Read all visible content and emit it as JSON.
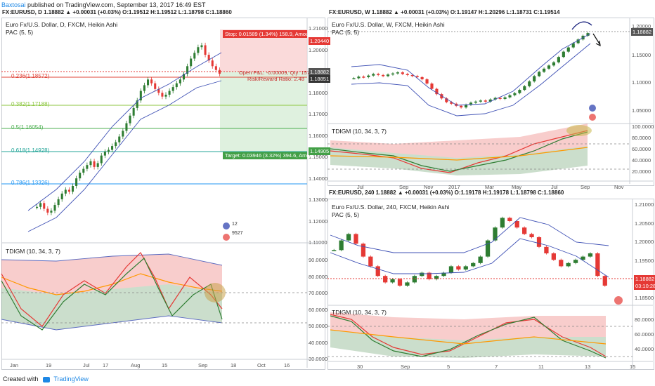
{
  "header": {
    "publisher": "Baxtosai",
    "published_text": "published on TradingView.com, September 13, 2017 16:49 EST"
  },
  "footer": {
    "created_with": "Created with",
    "brand": "TradingView"
  },
  "panels": {
    "daily": {
      "info": "FX:EURUSD, D 1.18882 ▲ +0.00031 (+0.03%) O:1.19512 H:1.19512 L:1.18798 C:1.18860",
      "title": "Euro Fx/U.S. Dollar, D, FXCM, Heikin Ashi",
      "pac": "PAC (5, 5)",
      "indicator": "TDIGM (10, 34, 3, 7)",
      "fib_levels": [
        {
          "label": "0.236(1.18572)",
          "price": 1.18572,
          "color": "#e0453a"
        },
        {
          "label": "0.382(1.17188)",
          "price": 1.17188,
          "color": "#8cc63f"
        },
        {
          "label": "0.5(1.16054)",
          "price": 1.16054,
          "color": "#4caf50"
        },
        {
          "label": "0.618(1.14928)",
          "price": 1.14928,
          "color": "#26a69a"
        },
        {
          "label": "0.786(1.13326)",
          "price": 1.13326,
          "color": "#2196f3"
        }
      ],
      "position": {
        "stop": "Stop: 0.01589 (1.34%) 158.9, Amou",
        "open": "Open P&L: -0.00009, Qty: 1573",
        "rr": "Risk/Reward Ratio: 2.48",
        "target": "Target: 0.03946 (3.32%) 394.6, Amoun"
      },
      "price_axis": [
        "1.21000",
        "1.20000",
        "1.19000",
        "1.18000",
        "1.17000",
        "1.16000",
        "1.15000",
        "1.14000",
        "1.13000",
        "1.12000",
        "1.11000"
      ],
      "price_badges": [
        {
          "text": "1.20440",
          "color": "#e53935"
        },
        {
          "text": "1.18882",
          "color": "#555555"
        },
        {
          "text": "1.18851",
          "color": "#333333"
        },
        {
          "text": "1.14905",
          "color": "#43a047"
        }
      ],
      "osc_axis": [
        "90.0000",
        "80.0000",
        "70.0000",
        "60.0000",
        "50.0000",
        "40.0000",
        "30.0000"
      ],
      "time_axis": [
        "Jan",
        "19",
        "Jul",
        "17",
        "Aug",
        "15",
        "Sep",
        "18",
        "Oct",
        "16"
      ],
      "badge_counts": [
        "12",
        "9527"
      ]
    },
    "weekly": {
      "info": "FX:EURUSD, W 1.18882 ▲ +0.00031 (+0.03%) O:1.19147 H:1.20296 L:1.18731 C:1.19514",
      "title": "Euro Fx/U.S. Dollar, W, FXCM, Heikin Ashi",
      "pac": "PAC (5, 5)",
      "indicator": "TDIGM (10, 34, 3, 7)",
      "price_axis": [
        "1.20000",
        "1.15000",
        "1.10000",
        "1.05000"
      ],
      "price_badge": "1.18882",
      "osc_axis": [
        "100.0000",
        "80.0000",
        "60.0000",
        "40.0000",
        "20.0000"
      ],
      "time_axis": [
        "Jul",
        "Sep",
        "Nov",
        "2017",
        "Mar",
        "May",
        "Jul",
        "Sep",
        "Nov"
      ]
    },
    "h4": {
      "info": "FX:EURUSD, 240 1.18882 ▲ +0.00031 (+0.03%) O:1.19178 H:1.19178 L:1.18798 C:1.18860",
      "title": "Euro Fx/U.S. Dollar, 240, FXCM, Heikin Ashi",
      "pac": "PAC (5, 5)",
      "indicator": "TDIGM (10, 34, 3, 7)",
      "price_axis": [
        "1.21000",
        "1.20500",
        "1.20000",
        "1.19500",
        "1.19000",
        "1.18500"
      ],
      "price_badges": [
        "1.18882",
        "03:10:28"
      ],
      "osc_axis": [
        "80.0000",
        "60.0000",
        "40.0000"
      ],
      "time_axis": [
        "30",
        "Sep",
        "5",
        "7",
        "11",
        "13",
        "15"
      ]
    }
  },
  "colors": {
    "bull": "#2e7d32",
    "bear": "#e53935",
    "pac_band": "#3f51b5",
    "osc_red": "#e53935",
    "osc_green": "#2e7d32",
    "osc_orange": "#ff9800",
    "osc_band": "#5c6bc0"
  },
  "chart_data": [
    {
      "type": "candlestick",
      "title": "Euro Fx/U.S. Dollar, D, FXCM, Heikin Ashi",
      "ylim": [
        1.105,
        1.215
      ],
      "close_path": [
        1.118,
        1.12,
        1.117,
        1.115,
        1.116,
        1.119,
        1.122,
        1.125,
        1.127,
        1.126,
        1.129,
        1.133,
        1.136,
        1.138,
        1.14,
        1.142,
        1.139,
        1.141,
        1.145,
        1.147,
        1.148,
        1.15,
        1.152,
        1.155,
        1.158,
        1.162,
        1.166,
        1.17,
        1.174,
        1.179,
        1.182,
        1.185,
        1.183,
        1.18,
        1.178,
        1.176,
        1.177,
        1.179,
        1.181,
        1.183,
        1.185,
        1.188,
        1.192,
        1.196,
        1.199,
        1.202,
        1.203,
        1.198,
        1.195,
        1.192,
        1.19,
        1.188
      ]
    },
    {
      "type": "candlestick",
      "title": "Euro Fx/U.S. Dollar, W, FXCM, Heikin Ashi",
      "ylim": [
        1.03,
        1.215
      ],
      "close_path": [
        1.11,
        1.113,
        1.112,
        1.115,
        1.118,
        1.116,
        1.114,
        1.117,
        1.119,
        1.121,
        1.118,
        1.116,
        1.114,
        1.112,
        1.108,
        1.1,
        1.09,
        1.08,
        1.072,
        1.065,
        1.062,
        1.058,
        1.055,
        1.06,
        1.064,
        1.066,
        1.068,
        1.066,
        1.07,
        1.073,
        1.071,
        1.074,
        1.078,
        1.082,
        1.088,
        1.095,
        1.104,
        1.114,
        1.122,
        1.128,
        1.134,
        1.14,
        1.15,
        1.16,
        1.168,
        1.176,
        1.183,
        1.19,
        1.195
      ]
    },
    {
      "type": "candlestick",
      "title": "Euro Fx/U.S. Dollar, 240, FXCM, Heikin Ashi",
      "ylim": [
        1.182,
        1.212
      ],
      "close_path": [
        1.198,
        1.201,
        1.203,
        1.2,
        1.196,
        1.193,
        1.19,
        1.188,
        1.189,
        1.187,
        1.188,
        1.19,
        1.191,
        1.189,
        1.19,
        1.191,
        1.193,
        1.192,
        1.193,
        1.194,
        1.196,
        1.201,
        1.205,
        1.208,
        1.207,
        1.205,
        1.203,
        1.202,
        1.199,
        1.197,
        1.195,
        1.193,
        1.194,
        1.195,
        1.196,
        1.197,
        1.19,
        1.187
      ]
    }
  ]
}
